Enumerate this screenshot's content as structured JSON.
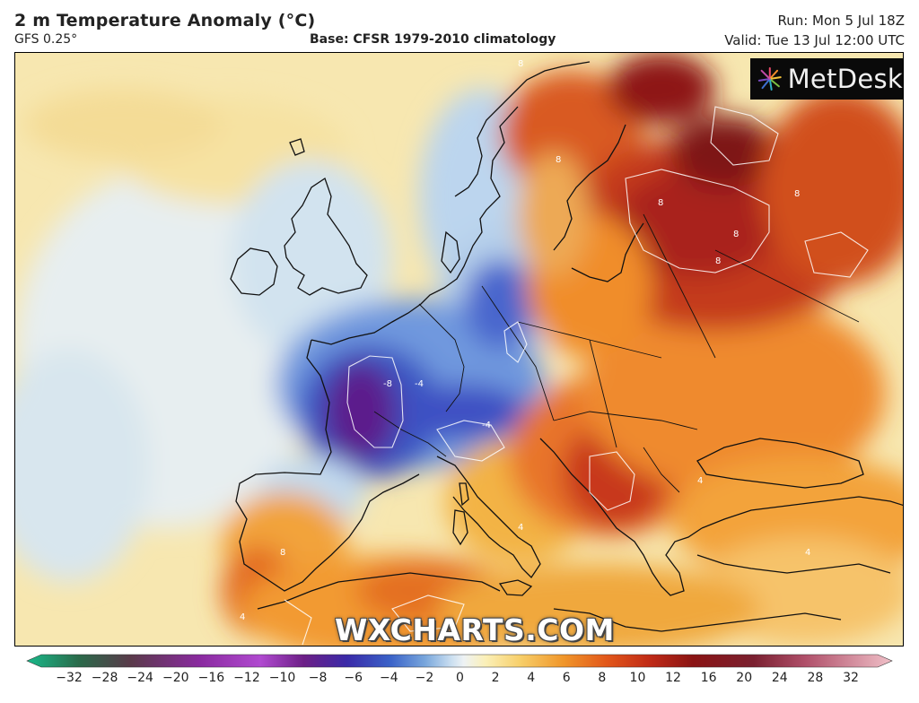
{
  "header": {
    "title": "2 m Temperature Anomaly (°C)",
    "model": "GFS 0.25°",
    "base": "Base: CFSR 1979-2010 climatology",
    "run": "Run: Mon 5 Jul 18Z",
    "valid": "Valid: Tue 13 Jul 12:00 UTC"
  },
  "logo": {
    "text": "MetDesk",
    "icon": "metdesk-starburst-icon"
  },
  "watermark": "WXCHARTS.COM",
  "colorbar": {
    "ticks": [
      "−32",
      "−28",
      "−24",
      "−20",
      "−16",
      "−12",
      "−10",
      "−8",
      "−6",
      "−4",
      "−2",
      "0",
      "2",
      "4",
      "6",
      "8",
      "10",
      "12",
      "16",
      "20",
      "24",
      "28",
      "32"
    ],
    "colors": {
      "min": "#19b98a",
      "cold_purple": "#6c1f86",
      "blue": "#3a62c8",
      "light_blue": "#a8cbe8",
      "white": "#eef2f4",
      "pale_yellow": "#fbf0b8",
      "yellow": "#f7cf6a",
      "orange": "#f0962a",
      "red_orange": "#e2571a",
      "dark_red": "#a51818",
      "max": "#f0c0c8"
    }
  },
  "contour_labels": [
    "8",
    "8",
    "8",
    "8",
    "8",
    "4",
    "4",
    "4",
    "-8",
    "-4",
    "-4",
    "8",
    "8",
    "4"
  ]
}
